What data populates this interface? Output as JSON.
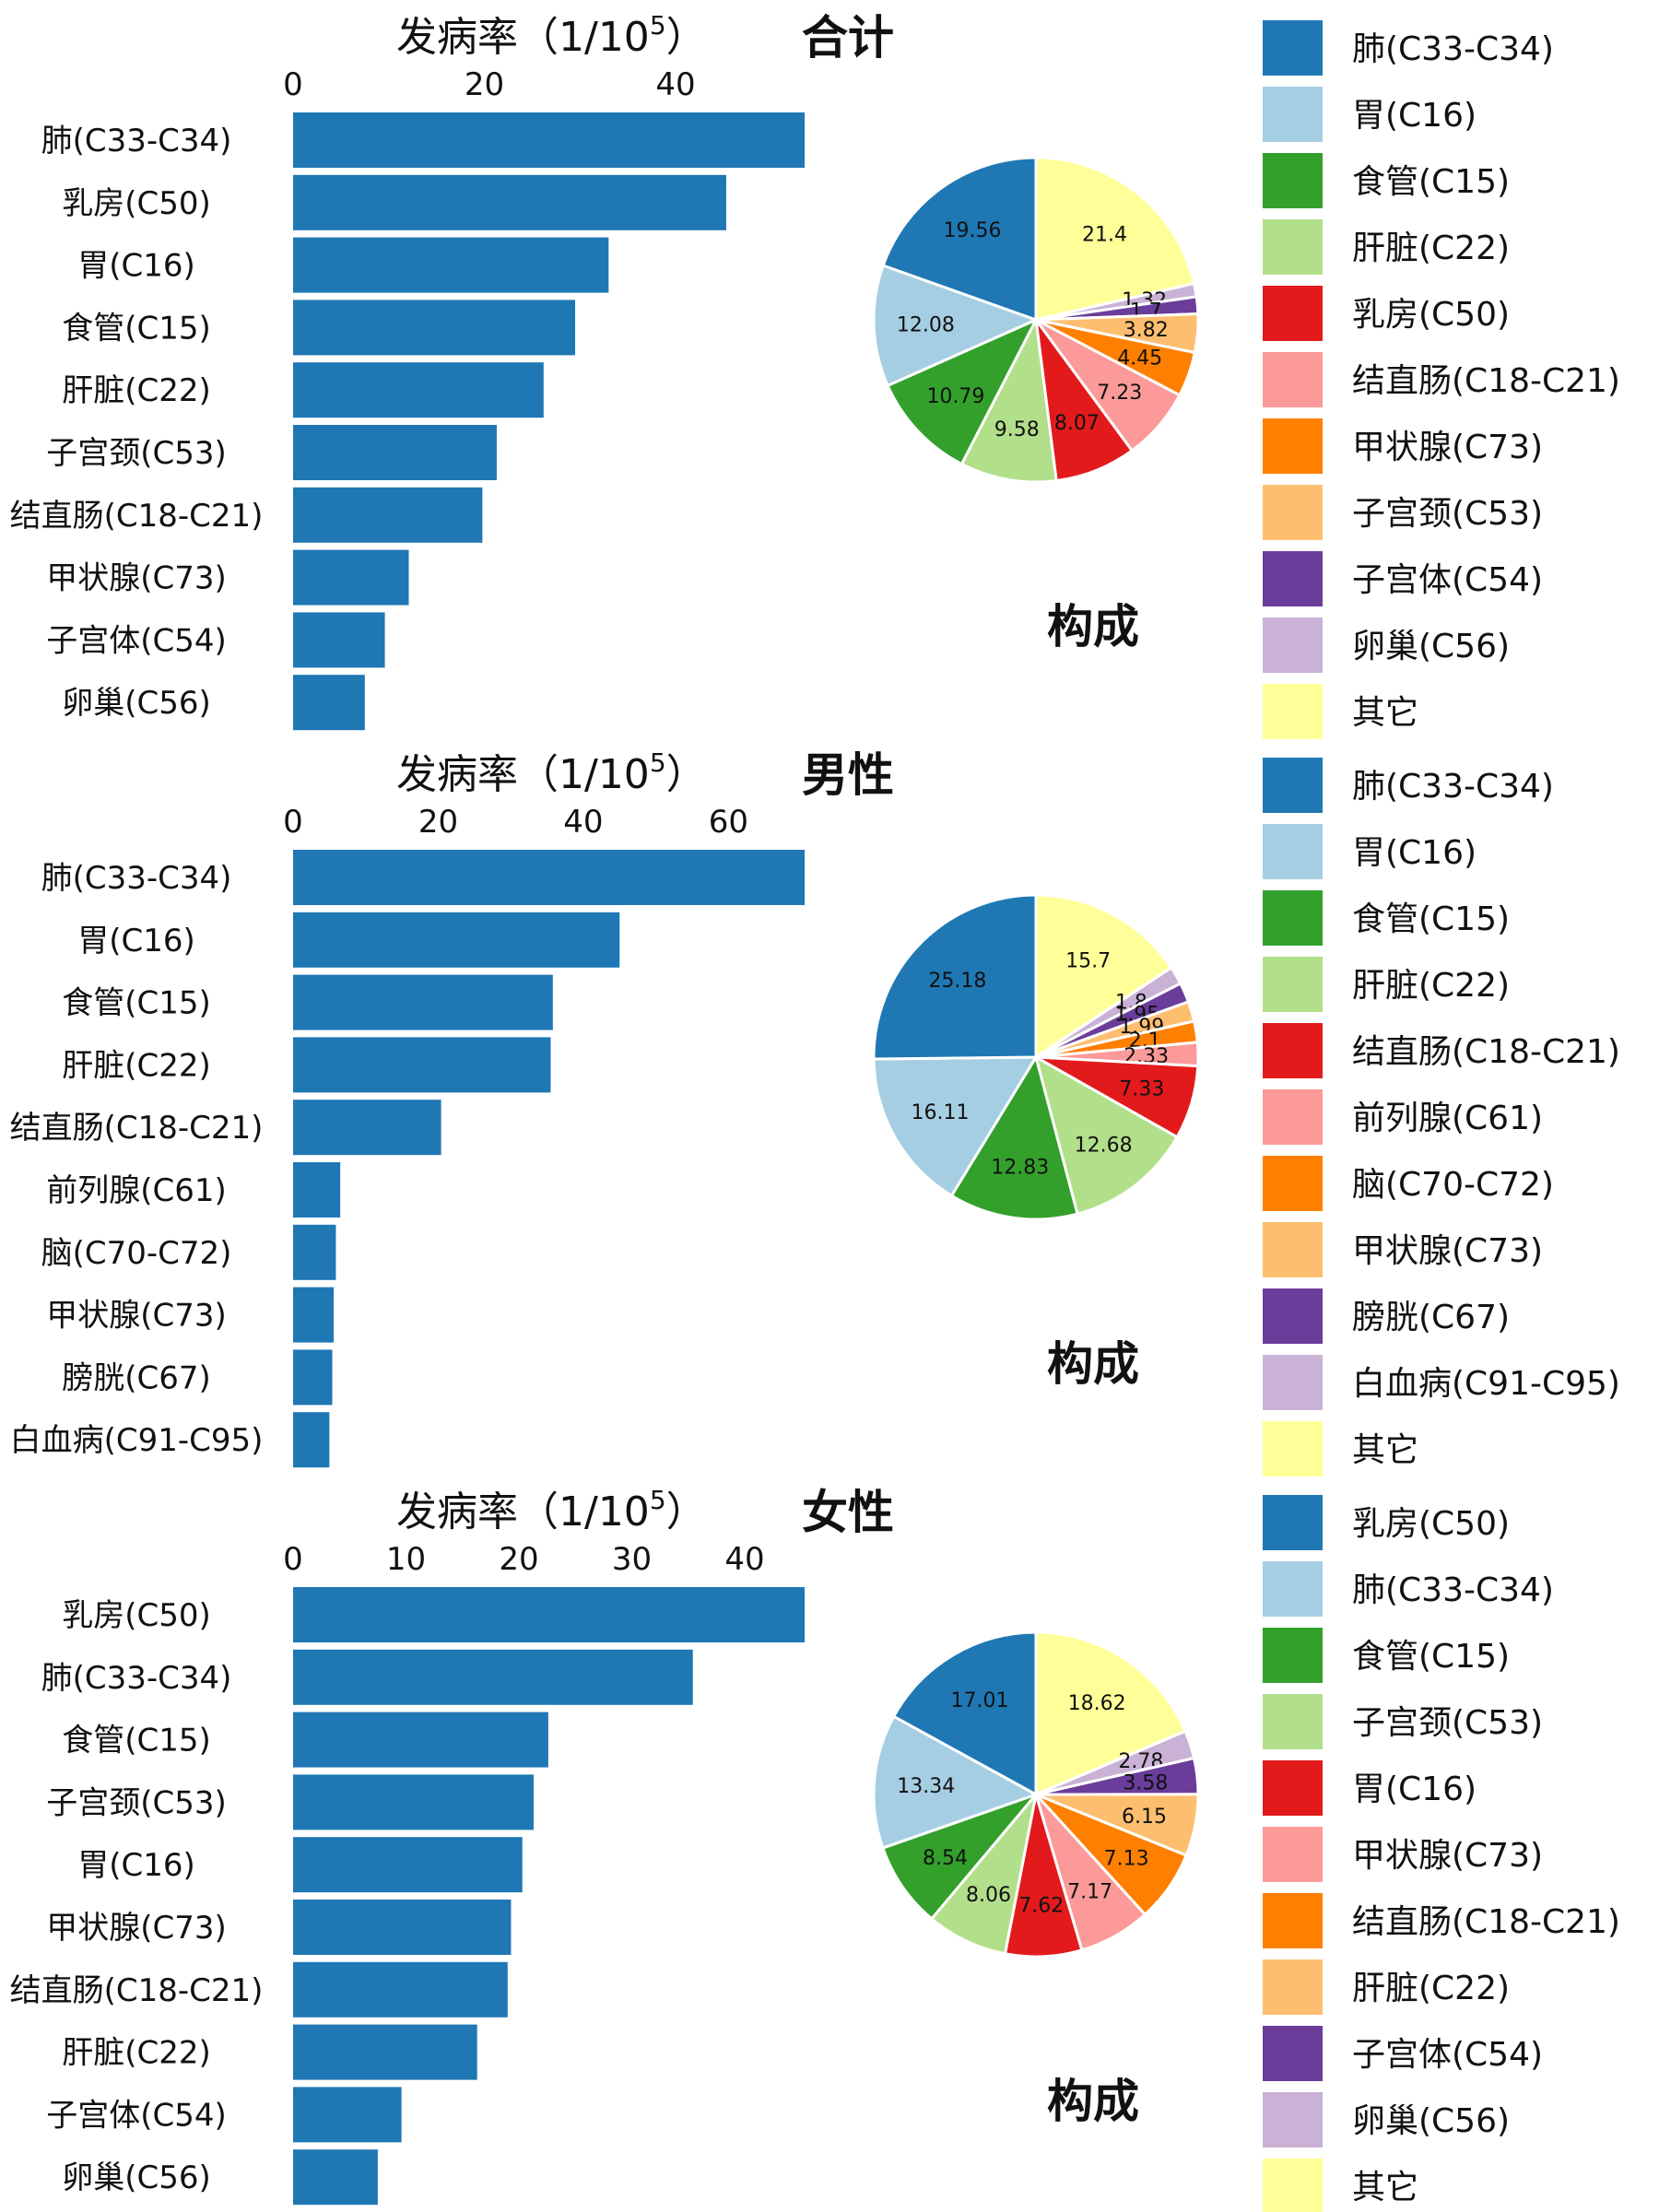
{
  "chart_data": [
    {
      "type": "bar",
      "title": "合计",
      "xlabel": "发病率（1/10",
      "xlabel_sup": "5",
      "xlabel_close": "）",
      "xlim": [
        0,
        53.5
      ],
      "ticks": [
        0,
        20,
        40
      ],
      "categories": [
        "肺(C33-C34)",
        "乳房(C50)",
        "胃(C16)",
        "食管(C15)",
        "肝脏(C22)",
        "子宫颈(C53)",
        "结直肠(C18-C21)",
        "甲状腺(C73)",
        "子宫体(C54)",
        "卵巢(C56)"
      ],
      "values": [
        53.5,
        45.3,
        33.0,
        29.5,
        26.2,
        21.3,
        19.8,
        12.1,
        9.6,
        7.5
      ],
      "bar_color": "#1f77b4",
      "pie": {
        "caption": "构成",
        "labels": [
          "21.4",
          "1.32",
          "1.7",
          "3.82",
          "4.45",
          "7.23",
          "8.07",
          "9.58",
          "10.79",
          "12.08",
          "19.56"
        ],
        "values": [
          21.4,
          1.32,
          1.7,
          3.82,
          4.45,
          7.23,
          8.07,
          9.58,
          10.79,
          12.08,
          19.56
        ],
        "colors": [
          "#FFFF99",
          "#CAB2D6",
          "#6A3D9A",
          "#FDBF6F",
          "#FF7F00",
          "#FB9A99",
          "#E31A1C",
          "#B2DF8A",
          "#33A02C",
          "#A6CEE3",
          "#1F78B4"
        ]
      },
      "legend": [
        {
          "label": "肺(C33-C34)",
          "color": "#1F78B4"
        },
        {
          "label": "胃(C16)",
          "color": "#A6CEE3"
        },
        {
          "label": "食管(C15)",
          "color": "#33A02C"
        },
        {
          "label": "肝脏(C22)",
          "color": "#B2DF8A"
        },
        {
          "label": "乳房(C50)",
          "color": "#E31A1C"
        },
        {
          "label": "结直肠(C18-C21)",
          "color": "#FB9A99"
        },
        {
          "label": "甲状腺(C73)",
          "color": "#FF7F00"
        },
        {
          "label": "子宫颈(C53)",
          "color": "#FDBF6F"
        },
        {
          "label": "子宫体(C54)",
          "color": "#6A3D9A"
        },
        {
          "label": "卵巢(C56)",
          "color": "#CAB2D6"
        },
        {
          "label": "其它",
          "color": "#FFFF99"
        }
      ]
    },
    {
      "type": "bar",
      "title": "男性",
      "xlabel": "发病率（1/10",
      "xlabel_sup": "5",
      "xlabel_close": "）",
      "xlim": [
        0,
        70.5
      ],
      "ticks": [
        0,
        20,
        40,
        60
      ],
      "categories": [
        "肺(C33-C34)",
        "胃(C16)",
        "食管(C15)",
        "肝脏(C22)",
        "结直肠(C18-C21)",
        "前列腺(C61)",
        "脑(C70-C72)",
        "甲状腺(C73)",
        "膀胱(C67)",
        "白血病(C91-C95)"
      ],
      "values": [
        70.5,
        45.0,
        35.8,
        35.5,
        20.4,
        6.5,
        5.9,
        5.6,
        5.4,
        5.0
      ],
      "bar_color": "#1f77b4",
      "pie": {
        "caption": "构成",
        "labels": [
          "15.7",
          "1.8",
          "1.95",
          "1.99",
          "2.1",
          "2.33",
          "7.33",
          "12.68",
          "12.83",
          "16.11",
          "25.18"
        ],
        "values": [
          15.7,
          1.8,
          1.95,
          1.99,
          2.1,
          2.33,
          7.33,
          12.68,
          12.83,
          16.11,
          25.18
        ],
        "colors": [
          "#FFFF99",
          "#CAB2D6",
          "#6A3D9A",
          "#FDBF6F",
          "#FF7F00",
          "#FB9A99",
          "#E31A1C",
          "#B2DF8A",
          "#33A02C",
          "#A6CEE3",
          "#1F78B4"
        ]
      },
      "legend": [
        {
          "label": "肺(C33-C34)",
          "color": "#1F78B4"
        },
        {
          "label": "胃(C16)",
          "color": "#A6CEE3"
        },
        {
          "label": "食管(C15)",
          "color": "#33A02C"
        },
        {
          "label": "肝脏(C22)",
          "color": "#B2DF8A"
        },
        {
          "label": "结直肠(C18-C21)",
          "color": "#E31A1C"
        },
        {
          "label": "前列腺(C61)",
          "color": "#FB9A99"
        },
        {
          "label": "脑(C70-C72)",
          "color": "#FF7F00"
        },
        {
          "label": "甲状腺(C73)",
          "color": "#FDBF6F"
        },
        {
          "label": "膀胱(C67)",
          "color": "#6A3D9A"
        },
        {
          "label": "白血病(C91-C95)",
          "color": "#CAB2D6"
        },
        {
          "label": "其它",
          "color": "#FFFF99"
        }
      ]
    },
    {
      "type": "bar",
      "title": "女性",
      "xlabel": "发病率（1/10",
      "xlabel_sup": "5",
      "xlabel_close": "）",
      "xlim": [
        0,
        45.3
      ],
      "ticks": [
        0,
        10,
        20,
        30,
        40
      ],
      "categories": [
        "乳房(C50)",
        "肺(C33-C34)",
        "食管(C15)",
        "子宫颈(C53)",
        "胃(C16)",
        "甲状腺(C73)",
        "结直肠(C18-C21)",
        "肝脏(C22)",
        "子宫体(C54)",
        "卵巢(C56)"
      ],
      "values": [
        45.3,
        35.4,
        22.6,
        21.3,
        20.3,
        19.3,
        19.0,
        16.3,
        9.6,
        7.5
      ],
      "bar_color": "#1f77b4",
      "pie": {
        "caption": "构成",
        "labels": [
          "18.62",
          "2.78",
          "3.58",
          "6.15",
          "7.13",
          "7.17",
          "7.62",
          "8.06",
          "8.54",
          "13.34",
          "17.01"
        ],
        "values": [
          18.62,
          2.78,
          3.58,
          6.15,
          7.13,
          7.17,
          7.62,
          8.06,
          8.54,
          13.34,
          17.01
        ],
        "colors": [
          "#FFFF99",
          "#CAB2D6",
          "#6A3D9A",
          "#FDBF6F",
          "#FF7F00",
          "#FB9A99",
          "#E31A1C",
          "#B2DF8A",
          "#33A02C",
          "#A6CEE3",
          "#1F78B4"
        ]
      },
      "legend": [
        {
          "label": "乳房(C50)",
          "color": "#1F78B4"
        },
        {
          "label": "肺(C33-C34)",
          "color": "#A6CEE3"
        },
        {
          "label": "食管(C15)",
          "color": "#33A02C"
        },
        {
          "label": "子宫颈(C53)",
          "color": "#B2DF8A"
        },
        {
          "label": "胃(C16)",
          "color": "#E31A1C"
        },
        {
          "label": "甲状腺(C73)",
          "color": "#FB9A99"
        },
        {
          "label": "结直肠(C18-C21)",
          "color": "#FF7F00"
        },
        {
          "label": "肝脏(C22)",
          "color": "#FDBF6F"
        },
        {
          "label": "子宫体(C54)",
          "color": "#6A3D9A"
        },
        {
          "label": "卵巢(C56)",
          "color": "#CAB2D6"
        },
        {
          "label": "其它",
          "color": "#FFFF99"
        }
      ]
    }
  ]
}
